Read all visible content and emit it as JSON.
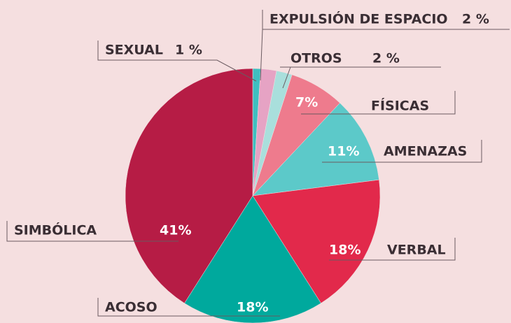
{
  "chart_data": {
    "type": "pie",
    "categories": [
      "SEXUAL",
      "EXPULSIÓN DE ESPACIO",
      "OTROS",
      "FÍSICAS",
      "AMENAZAS",
      "VERBAL",
      "ACOSO",
      "SIMBÓLICA"
    ],
    "values": [
      1,
      2,
      2,
      7,
      11,
      18,
      18,
      41
    ],
    "value_labels": [
      "1 %",
      "2 %",
      "2 %",
      "7%",
      "11%",
      "18%",
      "18%",
      "41%"
    ],
    "colors": [
      "#3fbfc0",
      "#e6a3c4",
      "#a9dfdc",
      "#ee7b8d",
      "#5cc9c9",
      "#e2294b",
      "#00a99d",
      "#b61c45"
    ]
  }
}
